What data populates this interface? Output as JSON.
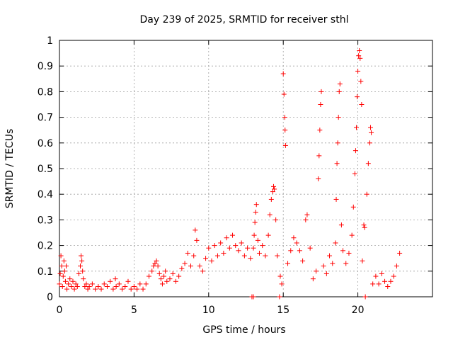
{
  "chart_data": {
    "type": "scatter",
    "title": "Day 239 of 2025, SRMTID for receiver sthl",
    "xlabel": "GPS time / hours",
    "ylabel": "SRMTID / TECUs",
    "xlim": [
      0,
      25
    ],
    "ylim": [
      0,
      1
    ],
    "xticks": [
      "0",
      "5",
      "10",
      "15",
      "20"
    ],
    "yticks": [
      "0",
      "0.1",
      "0.2",
      "0.3",
      "0.4",
      "0.5",
      "0.6",
      "0.7",
      "0.8",
      "0.9",
      "1"
    ],
    "grid": true,
    "marker": "+",
    "series_color": "#ff0000",
    "series": [
      {
        "name": "SRMTID",
        "points": [
          [
            0.0,
            0.05
          ],
          [
            0.05,
            0.09
          ],
          [
            0.1,
            0.16
          ],
          [
            0.15,
            0.12
          ],
          [
            0.2,
            0.04
          ],
          [
            0.25,
            0.08
          ],
          [
            0.3,
            0.14
          ],
          [
            0.35,
            0.1
          ],
          [
            0.4,
            0.06
          ],
          [
            0.45,
            0.12
          ],
          [
            0.5,
            0.03
          ],
          [
            0.6,
            0.05
          ],
          [
            0.7,
            0.07
          ],
          [
            0.8,
            0.04
          ],
          [
            0.9,
            0.06
          ],
          [
            1.0,
            0.03
          ],
          [
            1.1,
            0.05
          ],
          [
            1.2,
            0.04
          ],
          [
            1.3,
            0.09
          ],
          [
            1.4,
            0.12
          ],
          [
            1.45,
            0.16
          ],
          [
            1.5,
            0.14
          ],
          [
            1.55,
            0.1
          ],
          [
            1.6,
            0.07
          ],
          [
            1.7,
            0.04
          ],
          [
            1.8,
            0.05
          ],
          [
            1.9,
            0.03
          ],
          [
            2.0,
            0.04
          ],
          [
            2.2,
            0.05
          ],
          [
            2.4,
            0.03
          ],
          [
            2.6,
            0.04
          ],
          [
            2.8,
            0.03
          ],
          [
            3.0,
            0.05
          ],
          [
            3.2,
            0.04
          ],
          [
            3.4,
            0.06
          ],
          [
            3.6,
            0.03
          ],
          [
            3.75,
            0.07
          ],
          [
            3.8,
            0.04
          ],
          [
            4.0,
            0.05
          ],
          [
            4.2,
            0.03
          ],
          [
            4.4,
            0.04
          ],
          [
            4.6,
            0.06
          ],
          [
            4.8,
            0.03
          ],
          [
            5.0,
            0.04
          ],
          [
            5.2,
            0.03
          ],
          [
            5.4,
            0.05
          ],
          [
            5.6,
            0.03
          ],
          [
            5.8,
            0.05
          ],
          [
            6.0,
            0.08
          ],
          [
            6.2,
            0.1
          ],
          [
            6.3,
            0.12
          ],
          [
            6.4,
            0.13
          ],
          [
            6.5,
            0.14
          ],
          [
            6.6,
            0.12
          ],
          [
            6.7,
            0.09
          ],
          [
            6.8,
            0.07
          ],
          [
            6.9,
            0.05
          ],
          [
            7.0,
            0.08
          ],
          [
            7.1,
            0.1
          ],
          [
            7.2,
            0.06
          ],
          [
            7.4,
            0.07
          ],
          [
            7.6,
            0.09
          ],
          [
            7.8,
            0.06
          ],
          [
            8.0,
            0.08
          ],
          [
            8.2,
            0.11
          ],
          [
            8.4,
            0.13
          ],
          [
            8.6,
            0.17
          ],
          [
            8.8,
            0.12
          ],
          [
            9.0,
            0.16
          ],
          [
            9.1,
            0.26
          ],
          [
            9.2,
            0.22
          ],
          [
            9.4,
            0.12
          ],
          [
            9.6,
            0.1
          ],
          [
            9.8,
            0.15
          ],
          [
            10.0,
            0.19
          ],
          [
            10.2,
            0.14
          ],
          [
            10.4,
            0.2
          ],
          [
            10.6,
            0.16
          ],
          [
            10.8,
            0.21
          ],
          [
            11.0,
            0.17
          ],
          [
            11.2,
            0.23
          ],
          [
            11.4,
            0.19
          ],
          [
            11.6,
            0.24
          ],
          [
            11.8,
            0.2
          ],
          [
            12.0,
            0.18
          ],
          [
            12.2,
            0.21
          ],
          [
            12.4,
            0.16
          ],
          [
            12.6,
            0.19
          ],
          [
            12.8,
            0.15
          ],
          [
            12.9,
            0.0
          ],
          [
            13.0,
            0.19
          ],
          [
            13.0,
            0.0
          ],
          [
            13.05,
            0.24
          ],
          [
            13.1,
            0.29
          ],
          [
            13.15,
            0.33
          ],
          [
            13.2,
            0.36
          ],
          [
            13.3,
            0.22
          ],
          [
            13.4,
            0.17
          ],
          [
            13.6,
            0.2
          ],
          [
            13.8,
            0.16
          ],
          [
            14.0,
            0.24
          ],
          [
            14.1,
            0.32
          ],
          [
            14.2,
            0.38
          ],
          [
            14.3,
            0.41
          ],
          [
            14.35,
            0.43
          ],
          [
            14.4,
            0.42
          ],
          [
            14.5,
            0.3
          ],
          [
            14.6,
            0.16
          ],
          [
            14.75,
            0.0
          ],
          [
            14.8,
            0.08
          ],
          [
            14.9,
            0.05
          ],
          [
            15.0,
            0.87
          ],
          [
            15.05,
            0.79
          ],
          [
            15.1,
            0.7
          ],
          [
            15.12,
            0.65
          ],
          [
            15.15,
            0.59
          ],
          [
            15.3,
            0.13
          ],
          [
            15.5,
            0.18
          ],
          [
            15.7,
            0.23
          ],
          [
            15.9,
            0.21
          ],
          [
            16.1,
            0.18
          ],
          [
            16.3,
            0.14
          ],
          [
            16.5,
            0.3
          ],
          [
            16.6,
            0.32
          ],
          [
            16.8,
            0.19
          ],
          [
            17.0,
            0.07
          ],
          [
            17.2,
            0.1
          ],
          [
            17.35,
            0.46
          ],
          [
            17.4,
            0.55
          ],
          [
            17.45,
            0.65
          ],
          [
            17.5,
            0.75
          ],
          [
            17.55,
            0.8
          ],
          [
            17.7,
            0.12
          ],
          [
            17.9,
            0.09
          ],
          [
            18.1,
            0.16
          ],
          [
            18.3,
            0.13
          ],
          [
            18.5,
            0.21
          ],
          [
            18.55,
            0.38
          ],
          [
            18.6,
            0.52
          ],
          [
            18.65,
            0.6
          ],
          [
            18.7,
            0.7
          ],
          [
            18.75,
            0.8
          ],
          [
            18.8,
            0.83
          ],
          [
            18.9,
            0.28
          ],
          [
            19.0,
            0.18
          ],
          [
            19.2,
            0.13
          ],
          [
            19.4,
            0.17
          ],
          [
            19.6,
            0.24
          ],
          [
            19.7,
            0.35
          ],
          [
            19.8,
            0.48
          ],
          [
            19.85,
            0.57
          ],
          [
            19.9,
            0.66
          ],
          [
            19.95,
            0.78
          ],
          [
            20.0,
            0.88
          ],
          [
            20.05,
            0.94
          ],
          [
            20.1,
            0.96
          ],
          [
            20.15,
            0.93
          ],
          [
            20.2,
            0.84
          ],
          [
            20.25,
            0.75
          ],
          [
            20.3,
            0.14
          ],
          [
            20.4,
            0.28
          ],
          [
            20.45,
            0.27
          ],
          [
            20.5,
            0.0
          ],
          [
            20.6,
            0.4
          ],
          [
            20.7,
            0.52
          ],
          [
            20.8,
            0.6
          ],
          [
            20.85,
            0.66
          ],
          [
            20.9,
            0.64
          ],
          [
            21.0,
            0.05
          ],
          [
            21.2,
            0.08
          ],
          [
            21.4,
            0.05
          ],
          [
            21.6,
            0.09
          ],
          [
            21.8,
            0.06
          ],
          [
            22.0,
            0.04
          ],
          [
            22.2,
            0.06
          ],
          [
            22.4,
            0.08
          ],
          [
            22.6,
            0.12
          ],
          [
            22.8,
            0.17
          ]
        ]
      }
    ]
  }
}
